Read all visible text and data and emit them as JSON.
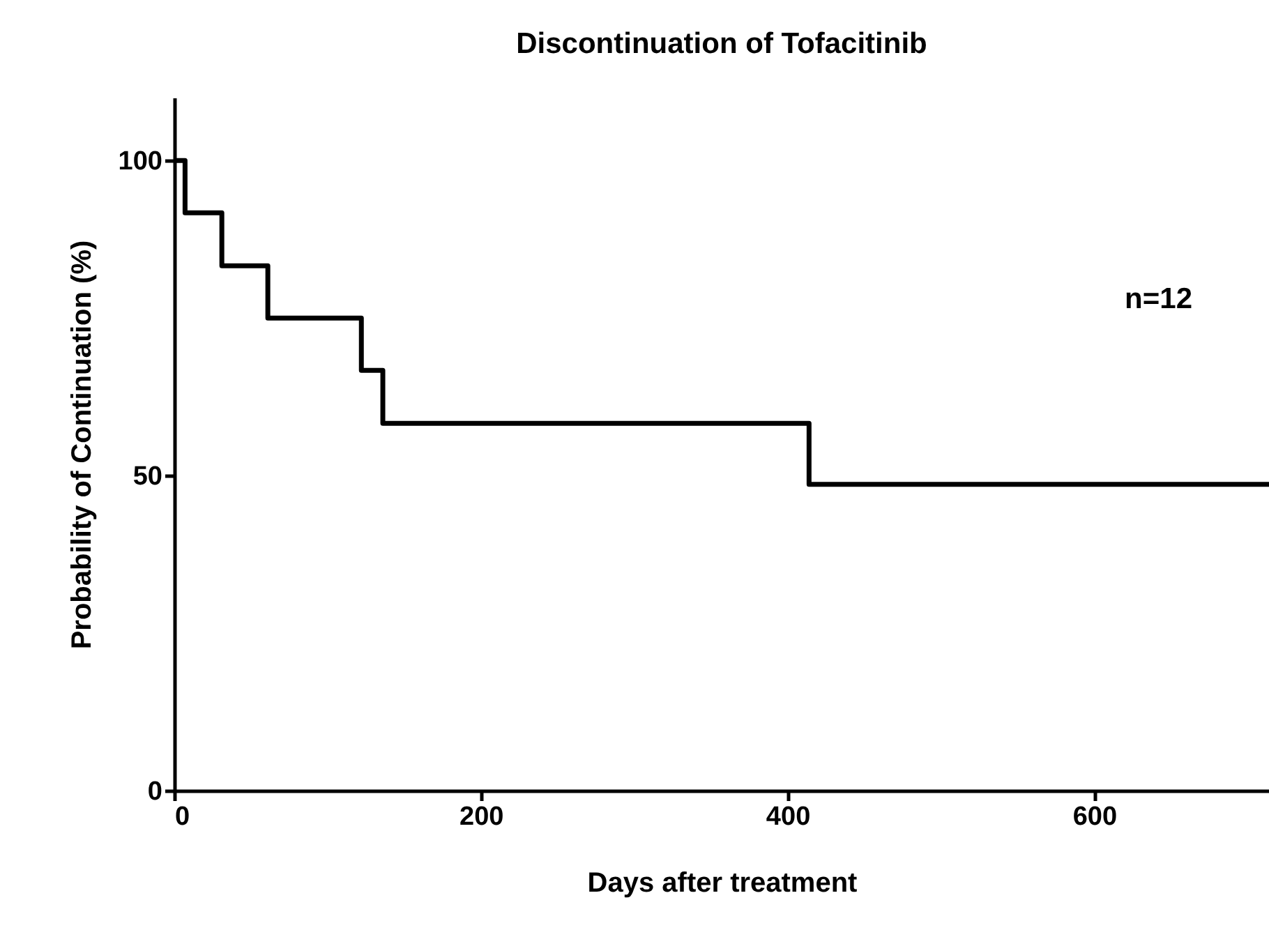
{
  "chart_data": {
    "type": "step",
    "title": "Discontinuation of Tofacitinib",
    "xlabel": "Days after treatment",
    "ylabel": "Probability of Continuation (%)",
    "annotations": [
      "n=12"
    ],
    "x": [
      0,
      7,
      31,
      61,
      122,
      136,
      414,
      714
    ],
    "values": [
      100,
      91.7,
      83.3,
      75,
      66.7,
      58.3,
      48.6,
      48.6
    ],
    "color": "#000000",
    "line_style": "solid",
    "xlim": [
      0,
      714
    ],
    "xticks": [
      0,
      200,
      400,
      600
    ],
    "ylim": [
      0,
      110
    ],
    "yticks": [
      0,
      50,
      100
    ]
  }
}
